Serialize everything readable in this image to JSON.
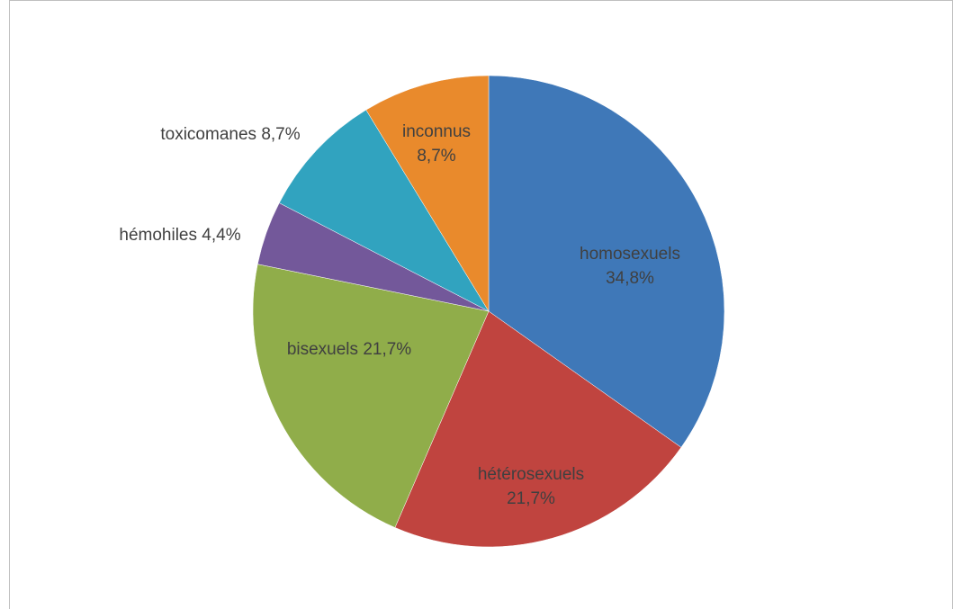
{
  "chart_data": {
    "type": "pie",
    "categories": [
      "homosexuels",
      "hétérosexuels",
      "bisexuels",
      "hémohiles",
      "toxicomanes",
      "inconnus"
    ],
    "values": [
      34.8,
      21.7,
      21.7,
      4.4,
      8.7,
      8.7
    ],
    "value_labels": [
      "34,8%",
      "21,7%",
      "21,7%",
      "4,4%",
      "8,7%",
      "8,7%"
    ],
    "colors": [
      "#3f78b8",
      "#c0443f",
      "#90ad4a",
      "#73589a",
      "#31a3bf",
      "#e98a2c"
    ]
  }
}
